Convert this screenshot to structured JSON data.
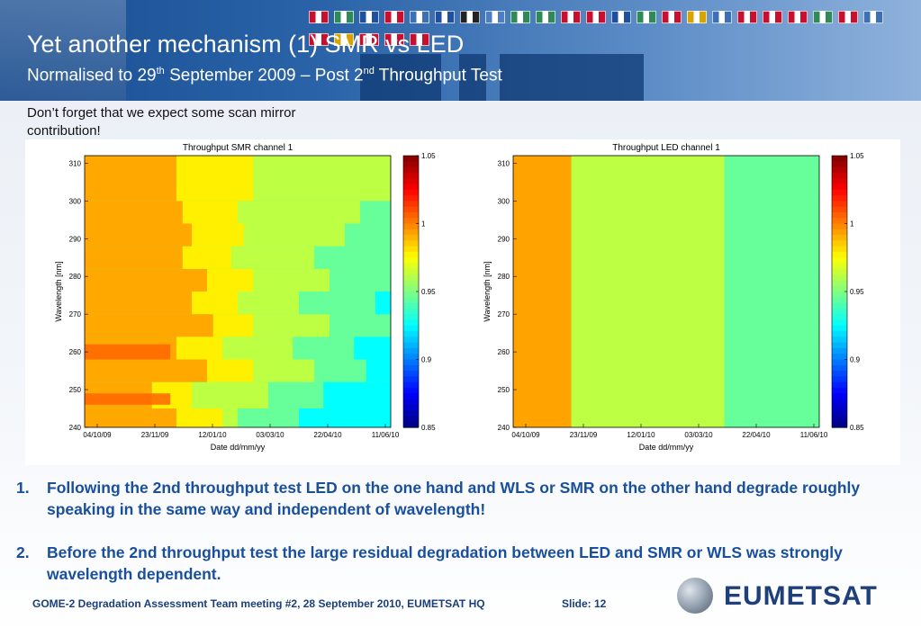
{
  "header": {
    "title": "Yet another mechanism (1) SMR vs LED",
    "subtitle_pre": "Normalised to 29",
    "subtitle_sup1": "th",
    "subtitle_mid": " September 2009 – Post 2",
    "subtitle_sup2": "nd",
    "subtitle_post": " Throughput Test",
    "flag_colors": [
      "#c8102e",
      "#2e8b57",
      "#1f4fa0",
      "#c8102e",
      "#3b6fb6",
      "#1f4fa0",
      "#222222",
      "#4a7fc8",
      "#2e8b57",
      "#2e8b57",
      "#c8102e",
      "#c8102e",
      "#1f4fa0",
      "#2e8b57",
      "#c8102e",
      "#d9a400",
      "#3b6fb6",
      "#c8102e",
      "#c8102e",
      "#c8102e",
      "#2e8b57",
      "#c8102e",
      "#3b6fb6",
      "#c8102e",
      "#d9a400",
      "#c8102e",
      "#c8102e",
      "#c8102e"
    ]
  },
  "note": "Don’t forget that we expect some scan mirror contribution!",
  "chart_data": [
    {
      "type": "heatmap",
      "title": "Throughput SMR channel 1",
      "xlabel": "Date dd/mm/yy",
      "ylabel": "Wavelength [nm]",
      "x_ticks": [
        "04/10/09",
        "23/11/09",
        "12/01/10",
        "03/03/10",
        "22/04/10",
        "11/06/10"
      ],
      "y_ticks": [
        240,
        250,
        260,
        270,
        280,
        290,
        300,
        310
      ],
      "ylim": [
        240,
        312
      ],
      "colorbar": {
        "ticks": [
          0.85,
          0.9,
          0.95,
          1,
          1.05
        ],
        "range": [
          0.85,
          1.05
        ]
      },
      "band_ranges": [
        [
          240,
          245
        ],
        [
          245,
          252
        ],
        [
          252,
          258
        ],
        [
          258,
          264
        ],
        [
          264,
          270
        ],
        [
          270,
          276
        ],
        [
          276,
          282
        ],
        [
          282,
          288
        ],
        [
          288,
          294
        ],
        [
          294,
          300
        ],
        [
          300,
          312
        ]
      ],
      "band_boundaries": [
        [
          0.3,
          0.45,
          0.5,
          0.7
        ],
        [
          0.22,
          0.35,
          0.6,
          0.78
        ],
        [
          0.4,
          0.55,
          0.75,
          0.92
        ],
        [
          0.3,
          0.45,
          0.68,
          0.88
        ],
        [
          0.42,
          0.55,
          0.8,
          1.0
        ],
        [
          0.35,
          0.5,
          0.7,
          0.95
        ],
        [
          0.4,
          0.55,
          0.8,
          1.0
        ],
        [
          0.32,
          0.48,
          0.75,
          1.0
        ],
        [
          0.35,
          0.52,
          0.85,
          1.0
        ],
        [
          0.32,
          0.5,
          0.9,
          1.0
        ],
        [
          0.3,
          0.55,
          1.0,
          1.0
        ]
      ],
      "zone_values": [
        0.992,
        0.978,
        0.962,
        0.945,
        0.925
      ],
      "orange_bands": [
        [
          246,
          249
        ],
        [
          258,
          262
        ]
      ],
      "orange_value": 1.005
    },
    {
      "type": "heatmap",
      "title": "Throughput LED channel 1",
      "xlabel": "Date dd/mm/yy",
      "ylabel": "Wavelength [nm]",
      "x_ticks": [
        "04/10/09",
        "23/11/09",
        "12/01/10",
        "03/03/10",
        "22/04/10",
        "11/06/10"
      ],
      "y_ticks": [
        240,
        250,
        260,
        270,
        280,
        290,
        300,
        310
      ],
      "ylim": [
        240,
        312
      ],
      "colorbar": {
        "ticks": [
          0.85,
          0.9,
          0.95,
          1,
          1.05
        ],
        "range": [
          0.85,
          1.05
        ]
      },
      "vertical_zones": [
        {
          "x_start": 0.0,
          "x_end": 0.19,
          "value": 0.993
        },
        {
          "x_start": 0.19,
          "x_end": 0.69,
          "value": 0.962
        },
        {
          "x_start": 0.69,
          "x_end": 1.0,
          "value": 0.945
        }
      ]
    }
  ],
  "bullets": [
    {
      "num": "1.",
      "text": "Following the 2nd throughput test LED on the one hand and WLS or SMR on the other hand degrade roughly speaking in the same way and independent of wavelength!"
    },
    {
      "num": "2.",
      "text": "Before the 2nd throughput test the large residual degradation between LED and SMR or WLS was strongly wavelength dependent."
    }
  ],
  "footer": {
    "meeting": "GOME-2 Degradation Assessment Team meeting #2, 28 September 2010, EUMETSAT HQ",
    "slide": "Slide: 12",
    "logo_text": "EUMETSAT"
  }
}
